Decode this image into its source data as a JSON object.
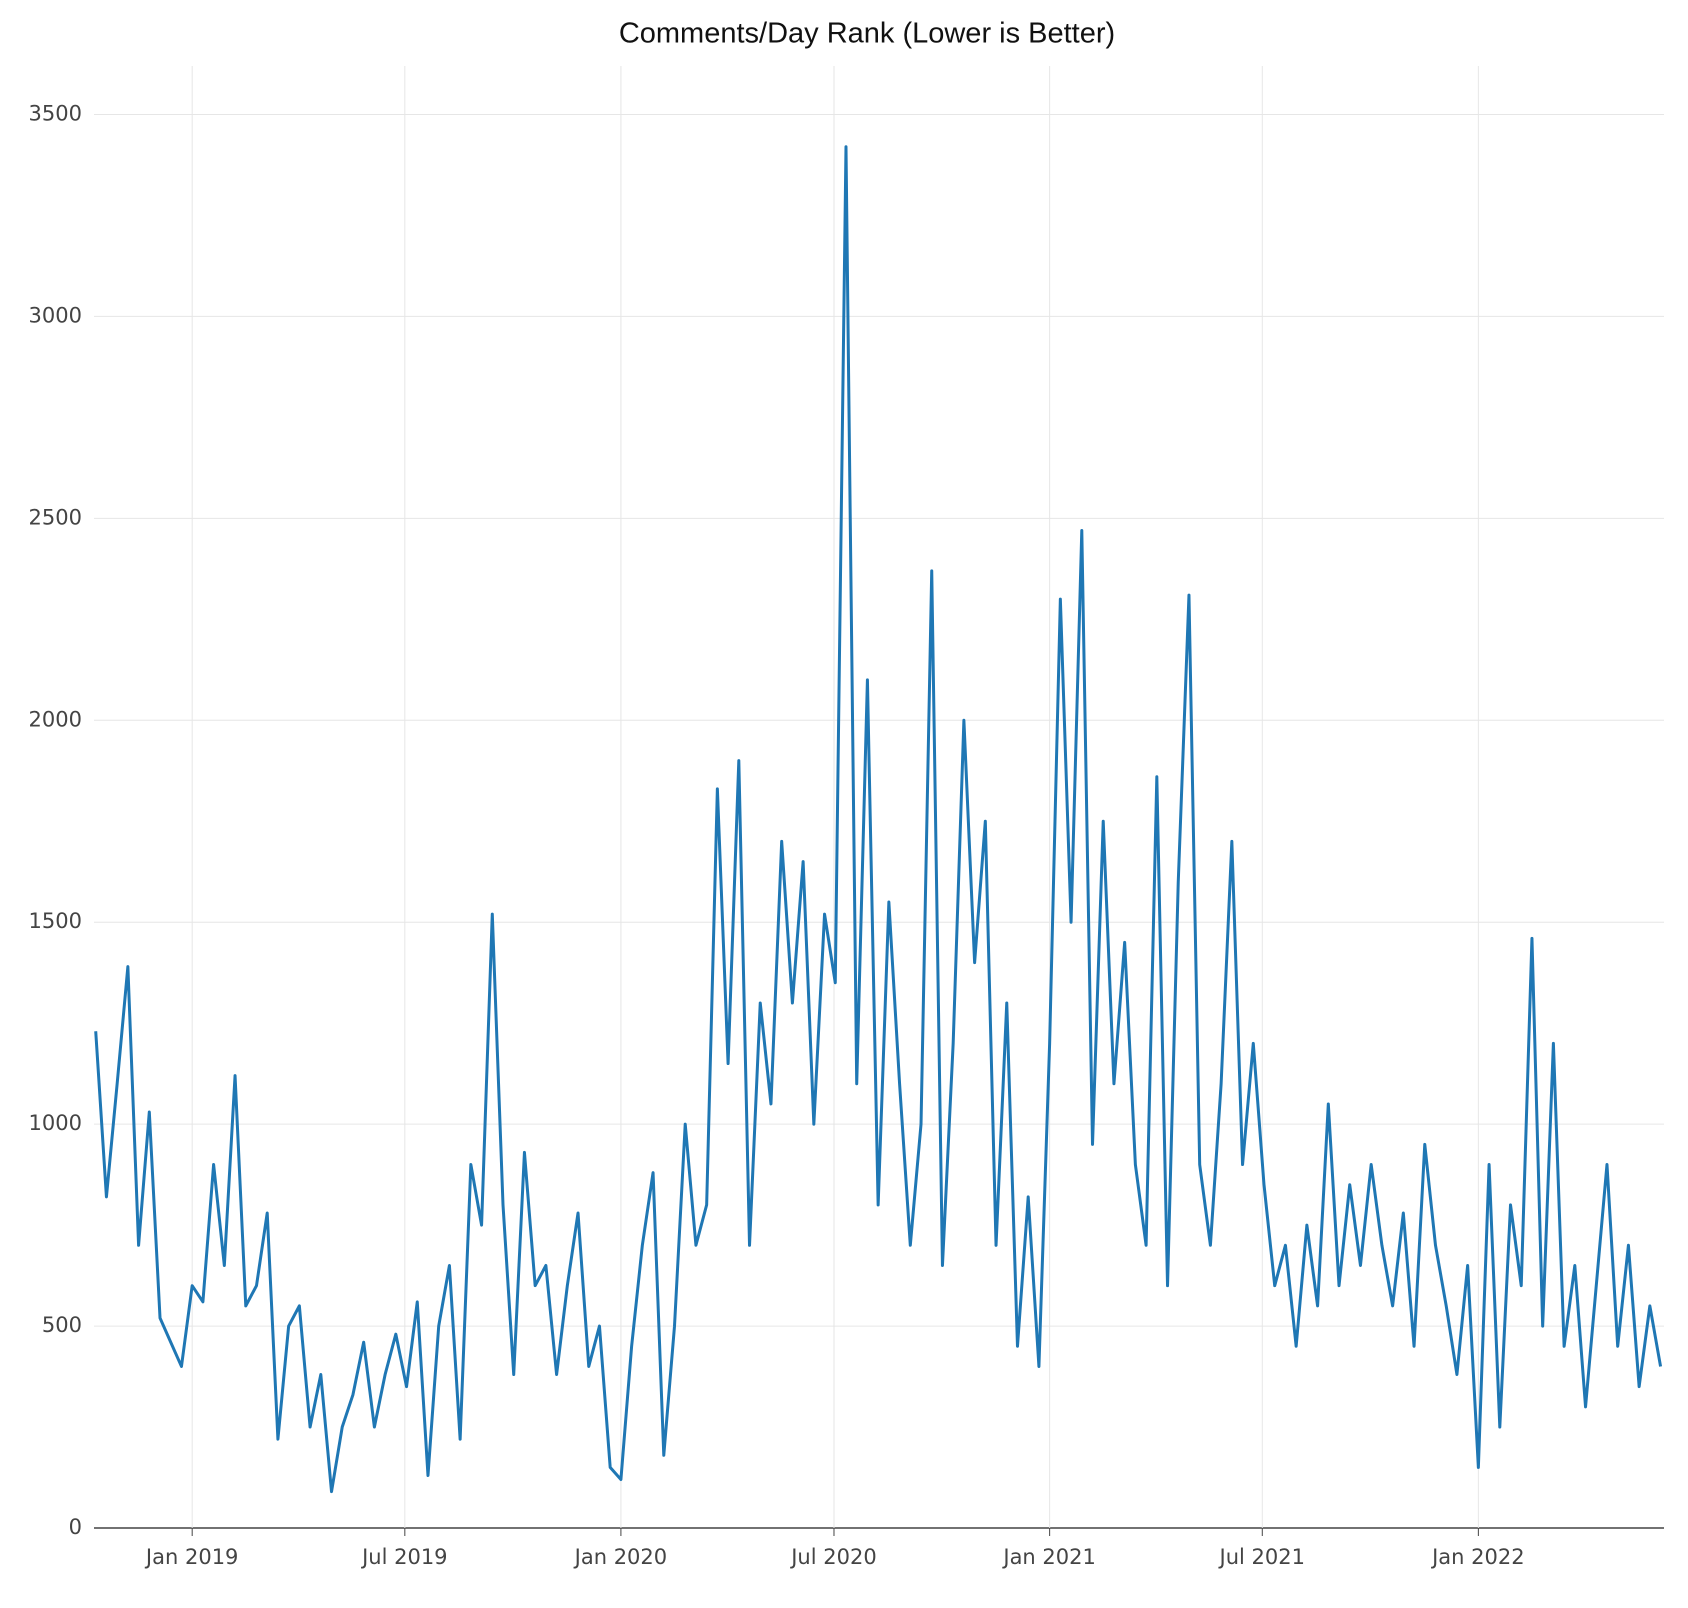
{
  "chart_data": {
    "type": "line",
    "title": "Comments/Day Rank (Lower is Better)",
    "x": [
      2018.775,
      2018.8,
      2018.825,
      2018.85,
      2018.875,
      2018.9,
      2018.925,
      2018.95,
      2018.975,
      2019.0,
      2019.025,
      2019.05,
      2019.075,
      2019.1,
      2019.125,
      2019.15,
      2019.175,
      2019.2,
      2019.225,
      2019.25,
      2019.275,
      2019.3,
      2019.325,
      2019.35,
      2019.375,
      2019.4,
      2019.425,
      2019.45,
      2019.475,
      2019.5,
      2019.525,
      2019.55,
      2019.575,
      2019.6,
      2019.625,
      2019.65,
      2019.675,
      2019.7,
      2019.725,
      2019.75,
      2019.775,
      2019.8,
      2019.825,
      2019.85,
      2019.875,
      2019.9,
      2019.925,
      2019.95,
      2019.975,
      2020.0,
      2020.025,
      2020.05,
      2020.075,
      2020.1,
      2020.125,
      2020.15,
      2020.175,
      2020.2,
      2020.225,
      2020.25,
      2020.275,
      2020.3,
      2020.325,
      2020.35,
      2020.375,
      2020.4,
      2020.425,
      2020.45,
      2020.475,
      2020.5,
      2020.525,
      2020.55,
      2020.575,
      2020.6,
      2020.625,
      2020.65,
      2020.675,
      2020.7,
      2020.725,
      2020.75,
      2020.775,
      2020.8,
      2020.825,
      2020.85,
      2020.875,
      2020.9,
      2020.925,
      2020.95,
      2020.975,
      2021.0,
      2021.025,
      2021.05,
      2021.075,
      2021.1,
      2021.125,
      2021.15,
      2021.175,
      2021.2,
      2021.225,
      2021.25,
      2021.275,
      2021.3,
      2021.325,
      2021.35,
      2021.375,
      2021.4,
      2021.425,
      2021.45,
      2021.475,
      2021.5,
      2021.525,
      2021.55,
      2021.575,
      2021.6,
      2021.625,
      2021.65,
      2021.675,
      2021.7,
      2021.725,
      2021.75,
      2021.775,
      2021.8,
      2021.825,
      2021.85,
      2021.875,
      2021.9,
      2021.925,
      2021.95,
      2021.975,
      2022.0,
      2022.025,
      2022.05,
      2022.075,
      2022.1,
      2022.125,
      2022.15,
      2022.175,
      2022.2,
      2022.225,
      2022.25,
      2022.275,
      2022.3,
      2022.325,
      2022.35,
      2022.375,
      2022.4,
      2022.425
    ],
    "series": [
      {
        "color": "#1f77b4",
        "values": [
          1230,
          820,
          1100,
          1390,
          700,
          1030,
          520,
          460,
          400,
          600,
          560,
          900,
          650,
          1120,
          550,
          600,
          780,
          220,
          500,
          550,
          250,
          380,
          90,
          250,
          330,
          460,
          250,
          380,
          480,
          350,
          560,
          130,
          500,
          650,
          220,
          900,
          750,
          1520,
          800,
          380,
          930,
          600,
          650,
          380,
          600,
          780,
          400,
          500,
          150,
          120,
          450,
          700,
          880,
          180,
          500,
          1000,
          700,
          800,
          1830,
          1150,
          1900,
          700,
          1300,
          1050,
          1700,
          1300,
          1650,
          1000,
          1520,
          1350,
          3420,
          1100,
          2100,
          800,
          1550,
          1100,
          700,
          1000,
          2370,
          650,
          1200,
          2000,
          1400,
          1750,
          700,
          1300,
          450,
          820,
          400,
          1200,
          2300,
          1500,
          2470,
          950,
          1750,
          1100,
          1450,
          900,
          700,
          1860,
          600,
          1600,
          2310,
          900,
          700,
          1100,
          1700,
          900,
          1200,
          850,
          600,
          700,
          450,
          750,
          550,
          1050,
          600,
          850,
          650,
          900,
          700,
          550,
          780,
          450,
          950,
          700,
          550,
          380,
          650,
          150,
          900,
          250,
          800,
          600,
          1460,
          500,
          1200,
          450,
          650,
          300,
          600,
          900,
          450,
          700,
          350,
          550,
          400
        ]
      }
    ],
    "xlim": [
      2018.771,
      2022.433
    ],
    "xticks": [
      {
        "value": 2019,
        "label": "Jan 2019"
      },
      {
        "value": 2019.496,
        "label": "Jul 2019"
      },
      {
        "value": 2020,
        "label": "Jan 2020"
      },
      {
        "value": 2020.497,
        "label": "Jul 2020"
      },
      {
        "value": 2021,
        "label": "Jan 2021"
      },
      {
        "value": 2021.496,
        "label": "Jul 2021"
      },
      {
        "value": 2022,
        "label": "Jan 2022"
      }
    ],
    "ylim": [
      0,
      3620
    ],
    "yticks": [
      0,
      500,
      1000,
      1500,
      2000,
      2500,
      3000,
      3500
    ],
    "grid": true
  }
}
